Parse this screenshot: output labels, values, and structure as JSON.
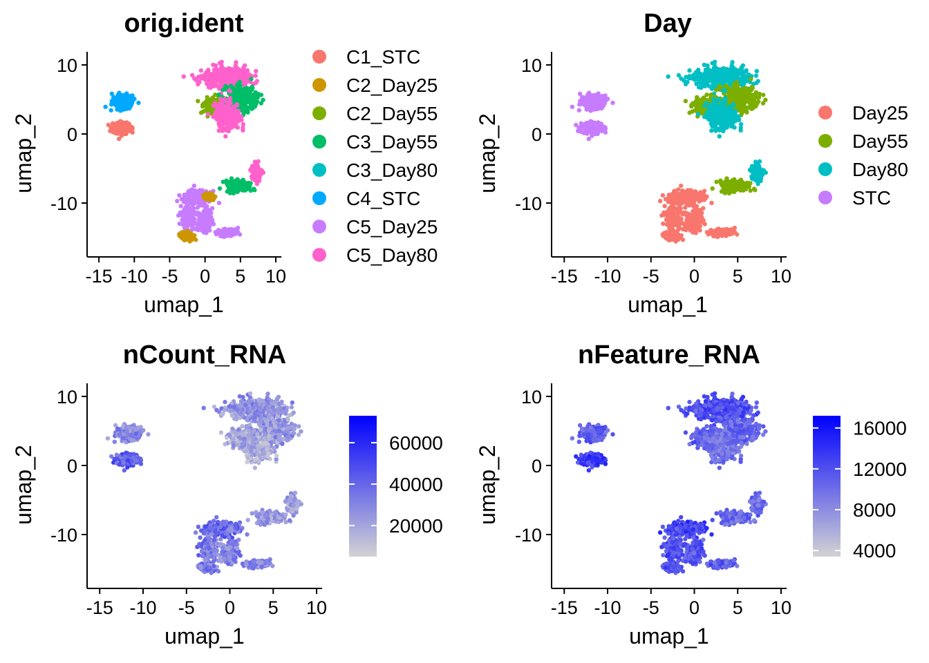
{
  "chart_data": [
    {
      "type": "scatter",
      "title": "orig.ident",
      "xlabel": "umap_1",
      "ylabel": "umap_2",
      "xlim": [
        -15.5,
        10
      ],
      "ylim": [
        -17,
        11.5
      ],
      "xticks": [
        -15,
        -10,
        -5,
        0,
        5,
        10
      ],
      "yticks": [
        -10,
        0,
        10
      ],
      "xtick_labels": [
        "-15",
        "-10",
        "-5",
        "0",
        "5",
        "10"
      ],
      "ytick_labels": [
        "-10",
        "0",
        "10"
      ],
      "color_by": "group",
      "legend": {
        "placement": "right",
        "entries": [
          {
            "label": "C1_STC",
            "color": "#F8766D"
          },
          {
            "label": "C2_Day25",
            "color": "#CD9600"
          },
          {
            "label": "C2_Day55",
            "color": "#7CAE00"
          },
          {
            "label": "C3_Day55",
            "color": "#00BE67"
          },
          {
            "label": "C3_Day80",
            "color": "#00BFC4"
          },
          {
            "label": "C4_STC",
            "color": "#00A9FF"
          },
          {
            "label": "C5_Day25",
            "color": "#C77CFF"
          },
          {
            "label": "C5_Day80",
            "color": "#FF61CC"
          }
        ]
      }
    },
    {
      "type": "scatter",
      "title": "Day",
      "xlabel": "umap_1",
      "ylabel": "umap_2",
      "xlim": [
        -15.5,
        10
      ],
      "ylim": [
        -17,
        11.5
      ],
      "xticks": [
        -15,
        -10,
        -5,
        0,
        5,
        10
      ],
      "yticks": [
        -10,
        0,
        10
      ],
      "xtick_labels": [
        "-15",
        "-10",
        "-5",
        "0",
        "5",
        "10"
      ],
      "ytick_labels": [
        "-10",
        "0",
        "10"
      ],
      "color_by": "day",
      "legend": {
        "placement": "right",
        "entries": [
          {
            "label": "Day25",
            "color": "#F8766D"
          },
          {
            "label": "Day55",
            "color": "#7CAE00"
          },
          {
            "label": "Day80",
            "color": "#00BFC4"
          },
          {
            "label": "STC",
            "color": "#C77CFF"
          }
        ]
      }
    },
    {
      "type": "scatter",
      "title": "nCount_RNA",
      "xlabel": "umap_1",
      "ylabel": "umap_2",
      "xlim": [
        -15.5,
        10
      ],
      "ylim": [
        -17,
        11.5
      ],
      "xticks": [
        -15,
        -10,
        -5,
        0,
        5,
        10
      ],
      "yticks": [
        -10,
        0,
        10
      ],
      "xtick_labels": [
        "-15",
        "-10",
        "-5",
        "0",
        "5",
        "10"
      ],
      "ytick_labels": [
        "-10",
        "0",
        "10"
      ],
      "color_by": "ncount",
      "colorbar": {
        "low_color": "#D3D3D3",
        "high_color": "#0000FF",
        "range": [
          5000,
          73000
        ],
        "ticks": [
          20000,
          40000,
          60000
        ],
        "tick_labels": [
          "20000",
          "40000",
          "60000"
        ]
      }
    },
    {
      "type": "scatter",
      "title": "nFeature_RNA",
      "xlabel": "umap_1",
      "ylabel": "umap_2",
      "xlim": [
        -15.5,
        10
      ],
      "ylim": [
        -17,
        11.5
      ],
      "xticks": [
        -15,
        -10,
        -5,
        0,
        5,
        10
      ],
      "yticks": [
        -10,
        0,
        10
      ],
      "xtick_labels": [
        "-15",
        "-10",
        "-5",
        "0",
        "5",
        "10"
      ],
      "ytick_labels": [
        "-10",
        "0",
        "10"
      ],
      "color_by": "nfeature",
      "colorbar": {
        "low_color": "#D3D3D3",
        "high_color": "#0000FF",
        "range": [
          3400,
          17200
        ],
        "ticks": [
          4000,
          8000,
          12000,
          16000
        ],
        "tick_labels": [
          "4000",
          "8000",
          "12000",
          "16000"
        ]
      }
    }
  ],
  "clusters": [
    {
      "id": "stc_top",
      "center": [
        -11.7,
        4.7
      ],
      "spread": [
        1.4,
        1.0
      ],
      "count": 300,
      "group": "C4_STC",
      "day": "STC",
      "ncount": 0.35,
      "nfeature": 0.55
    },
    {
      "id": "stc_bottom",
      "center": [
        -11.8,
        0.9
      ],
      "spread": [
        1.3,
        0.8
      ],
      "count": 220,
      "group": "C1_STC",
      "day": "STC",
      "ncount": 0.55,
      "nfeature": 0.7
    },
    {
      "id": "big_top",
      "center": [
        3.0,
        8.2
      ],
      "spread": [
        3.2,
        1.5
      ],
      "count": 400,
      "group": "C5_Day80",
      "day": "Day80",
      "ncount": 0.3,
      "nfeature": 0.62
    },
    {
      "id": "big_left",
      "center": [
        2.0,
        4.0
      ],
      "spread": [
        2.0,
        1.2
      ],
      "count": 250,
      "group": "C2_Day55",
      "day": "Day55",
      "ncount": 0.22,
      "nfeature": 0.55
    },
    {
      "id": "big_right",
      "center": [
        5.2,
        5.0
      ],
      "spread": [
        2.2,
        1.8
      ],
      "count": 300,
      "group": "C3_Day55",
      "day": "Day55",
      "ncount": 0.28,
      "nfeature": 0.5
    },
    {
      "id": "big_center",
      "center": [
        3.2,
        2.6
      ],
      "spread": [
        1.8,
        2.0
      ],
      "count": 250,
      "group": "C5_Day80",
      "day": "Day80",
      "ncount": 0.2,
      "nfeature": 0.45
    },
    {
      "id": "streak",
      "center": [
        4.8,
        -7.5
      ],
      "spread": [
        1.9,
        0.9
      ],
      "count": 130,
      "group": "C3_Day55",
      "day": "Day55",
      "ncount": 0.28,
      "nfeature": 0.5
    },
    {
      "id": "streak_end",
      "center": [
        7.2,
        -5.6
      ],
      "spread": [
        0.8,
        1.2
      ],
      "count": 80,
      "group": "C5_Day80",
      "day": "Day80",
      "ncount": 0.25,
      "nfeature": 0.5
    },
    {
      "id": "d25_top",
      "center": [
        -1.2,
        -9.2
      ],
      "spread": [
        2.0,
        0.9
      ],
      "count": 170,
      "group": "C5_Day25",
      "day": "Day25",
      "ncount": 0.5,
      "nfeature": 0.7
    },
    {
      "id": "d25_left",
      "center": [
        -2.4,
        -12.2
      ],
      "spread": [
        0.9,
        2.2
      ],
      "count": 170,
      "group": "C5_Day25",
      "day": "Day25",
      "ncount": 0.42,
      "nfeature": 0.62
    },
    {
      "id": "d25_mid",
      "center": [
        0.0,
        -12.5
      ],
      "spread": [
        1.0,
        1.6
      ],
      "count": 140,
      "group": "C5_Day25",
      "day": "Day25",
      "ncount": 0.38,
      "nfeature": 0.58
    },
    {
      "id": "d25_tail",
      "center": [
        3.2,
        -14.2
      ],
      "spread": [
        1.5,
        0.5
      ],
      "count": 100,
      "group": "C5_Day25",
      "day": "Day25",
      "ncount": 0.35,
      "nfeature": 0.55
    },
    {
      "id": "d25_bottom",
      "center": [
        -2.5,
        -14.8
      ],
      "spread": [
        1.0,
        0.6
      ],
      "count": 90,
      "group": "C2_Day25",
      "day": "Day25",
      "ncount": 0.4,
      "nfeature": 0.6
    },
    {
      "id": "d25_arc",
      "center": [
        0.6,
        -9.0
      ],
      "spread": [
        0.7,
        0.5
      ],
      "count": 70,
      "group": "C2_Day25",
      "day": "Day25",
      "ncount": 0.45,
      "nfeature": 0.66
    }
  ]
}
